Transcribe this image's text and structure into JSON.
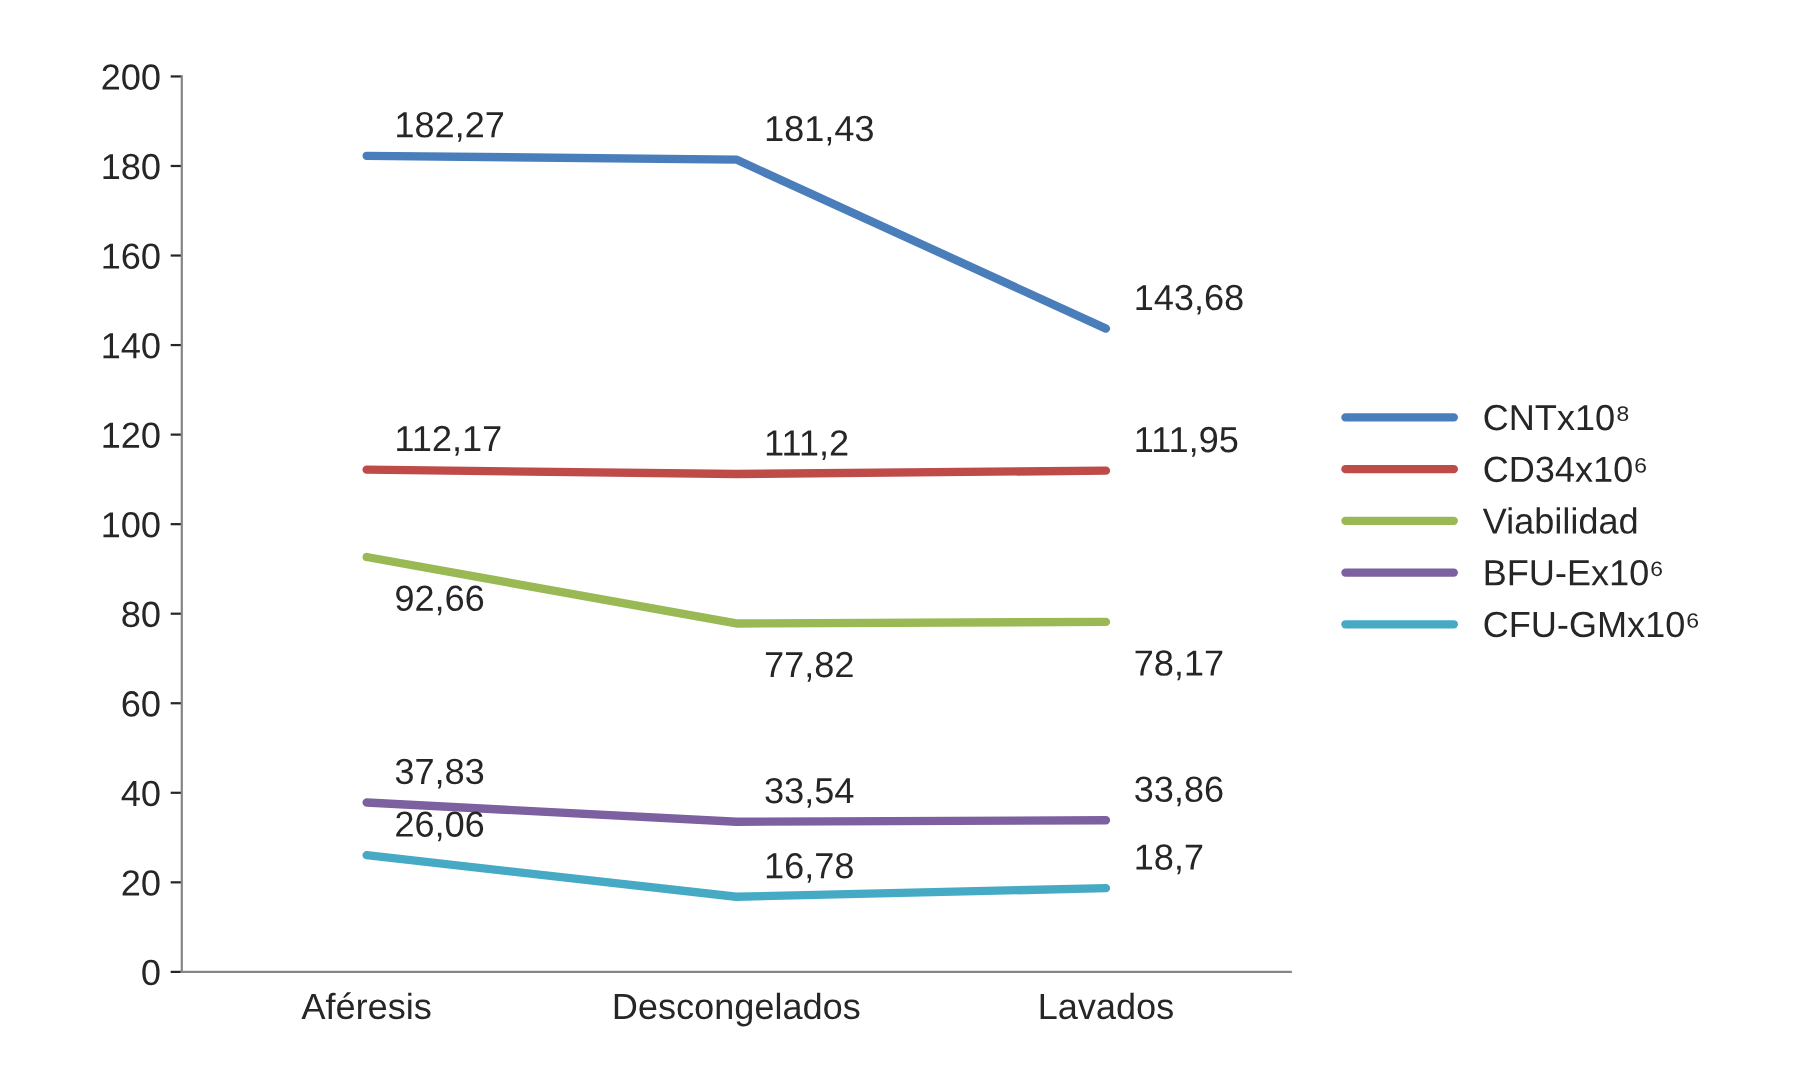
{
  "chart_data": {
    "type": "line",
    "categories": [
      "Aféresis",
      "Descongelados",
      "Lavados"
    ],
    "series": [
      {
        "name": "CNTx10⁸",
        "color": "#4a7ebb",
        "values": [
          182.27,
          181.43,
          143.68
        ],
        "value_labels": [
          "182,27",
          "181,43",
          "143,68"
        ]
      },
      {
        "name": "CD34x10⁶",
        "color": "#be4b48",
        "values": [
          112.17,
          111.2,
          111.95
        ],
        "value_labels": [
          "112,17",
          "111,2",
          "111,95"
        ]
      },
      {
        "name": "Viabilidad",
        "color": "#98b954",
        "values": [
          92.66,
          77.82,
          78.17
        ],
        "value_labels": [
          "92,66",
          "77,82",
          "78,17"
        ]
      },
      {
        "name": "BFU-Ex10⁶",
        "color": "#7d60a0",
        "values": [
          37.83,
          33.54,
          33.86
        ],
        "value_labels": [
          "37,83",
          "33,54",
          "33,86"
        ]
      },
      {
        "name": "CFU-GMx10⁶",
        "color": "#46aac5",
        "values": [
          26.06,
          16.78,
          18.7
        ],
        "value_labels": [
          "26,06",
          "16,78",
          "18,7"
        ]
      }
    ],
    "ylim": [
      0,
      200
    ],
    "yticks": [
      0,
      20,
      40,
      60,
      80,
      100,
      120,
      140,
      160,
      180,
      200
    ],
    "grid": false,
    "legend": "right",
    "marker": "none",
    "line_style": "solid"
  }
}
